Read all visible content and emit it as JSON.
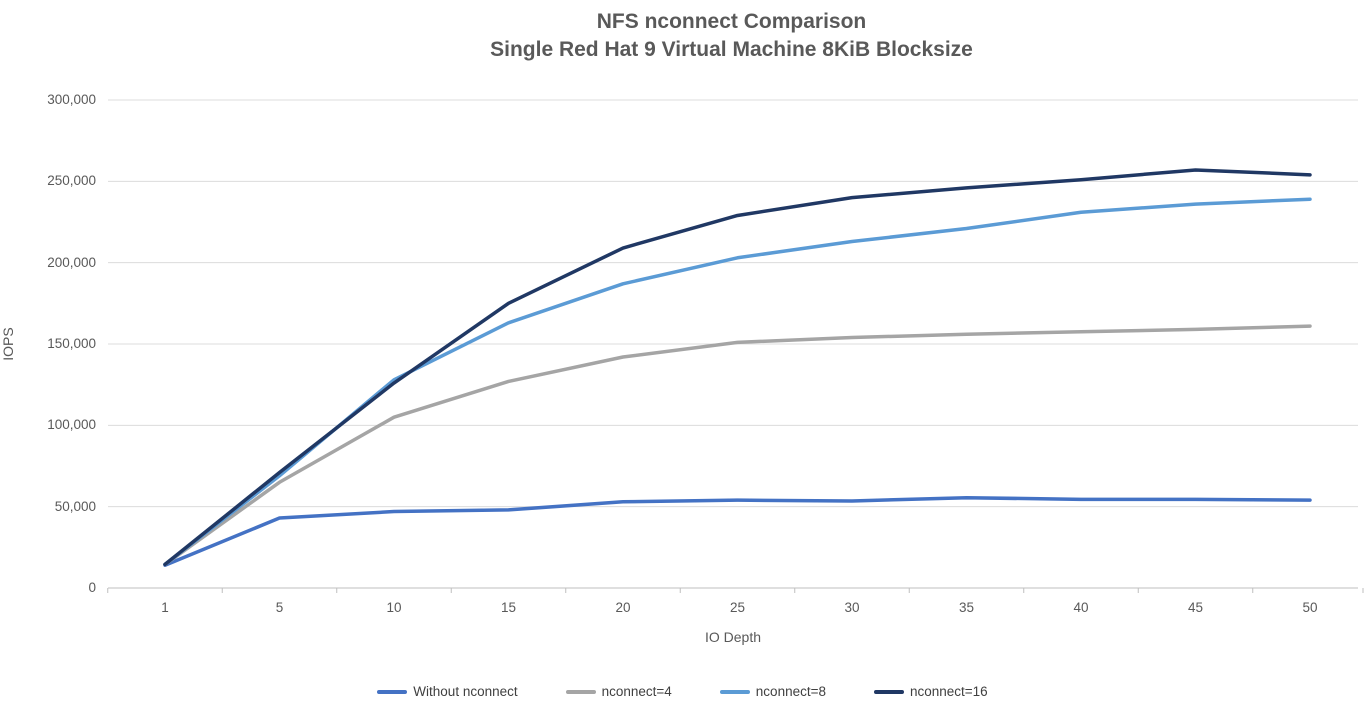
{
  "chart_data": {
    "type": "line",
    "title": "NFS nconnect Comparison",
    "subtitle": "Single Red Hat 9 Virtual Machine 8KiB Blocksize",
    "xlabel": "IO Depth",
    "ylabel": "IOPS",
    "categories": [
      "1",
      "5",
      "10",
      "15",
      "20",
      "25",
      "30",
      "35",
      "40",
      "45",
      "50"
    ],
    "y_tick_labels": [
      "0",
      "50,000",
      "100,000",
      "150,000",
      "200,000",
      "250,000",
      "300,000"
    ],
    "y_tick_values": [
      0,
      50000,
      100000,
      150000,
      200000,
      250000,
      300000
    ],
    "ylim": [
      0,
      300000
    ],
    "grid": true,
    "legend_position": "bottom",
    "colors": {
      "grid": "#DCDCDC",
      "axis": "#BFBFBF",
      "title_text": "#595959",
      "tick_text": "#595959",
      "legend_text": "#404040"
    },
    "series": [
      {
        "name": "Without nconnect",
        "color": "#4472C4",
        "values": [
          14000,
          43000,
          47000,
          48000,
          53000,
          54000,
          53500,
          55500,
          54500,
          54500,
          54000
        ]
      },
      {
        "name": "nconnect=4",
        "color": "#A5A5A5",
        "values": [
          14500,
          65000,
          105000,
          127000,
          142000,
          151000,
          154000,
          156000,
          157500,
          159000,
          161000
        ]
      },
      {
        "name": "nconnect=8",
        "color": "#5B9BD5",
        "values": [
          14500,
          69000,
          128000,
          163000,
          187000,
          203000,
          213000,
          221000,
          231000,
          236000,
          239000
        ]
      },
      {
        "name": "nconnect=16",
        "color": "#203864",
        "values": [
          14500,
          71000,
          126000,
          175000,
          209000,
          229000,
          240000,
          246000,
          251000,
          257000,
          254000
        ]
      }
    ]
  }
}
